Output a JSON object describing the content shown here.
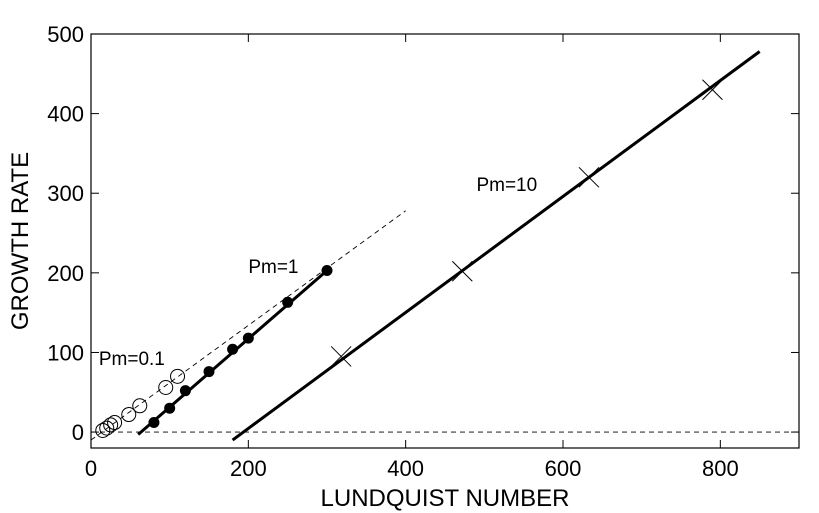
{
  "chart_data": {
    "type": "scatter",
    "title": "",
    "xlabel": "LUNDQUIST NUMBER",
    "ylabel": "GROWTH RATE",
    "xlim": [
      0,
      900
    ],
    "ylim": [
      -20,
      500
    ],
    "xticks": [
      "0",
      "200",
      "400",
      "600",
      "800"
    ],
    "yticks": [
      "0",
      "100",
      "200",
      "300",
      "400",
      "500"
    ],
    "grid": false,
    "legend": "none",
    "series": [
      {
        "marker": "open-circle",
        "x": [
          15,
          20,
          25,
          30,
          48,
          62,
          95,
          110
        ],
        "y": [
          2,
          5,
          9,
          12,
          22,
          33,
          56,
          70
        ]
      },
      {
        "marker": "filled-circle",
        "line": "solid",
        "x": [
          80,
          100,
          120,
          150,
          180,
          200,
          250,
          300
        ],
        "y": [
          12,
          30,
          52,
          76,
          104,
          118,
          163,
          203
        ],
        "fit": [
          [
            60,
            -3
          ],
          [
            300,
            203
          ]
        ]
      },
      {
        "marker": "cross",
        "line": "solid",
        "x": [
          318,
          472,
          633,
          790
        ],
        "y": [
          95,
          202,
          320,
          430
        ],
        "fit": [
          [
            180,
            -10
          ],
          [
            850,
            478
          ]
        ]
      }
    ],
    "reference_lines": [
      {
        "style": "dashed",
        "points": [
          [
            0,
            -10
          ],
          [
            400,
            278
          ]
        ]
      },
      {
        "style": "dashed",
        "points": [
          [
            0,
            0
          ],
          [
            900,
            0
          ]
        ]
      }
    ],
    "annotations": [
      {
        "text": "Pm=0.1",
        "x": 10,
        "y": 84
      },
      {
        "text": "Pm=1",
        "x": 200,
        "y": 200
      },
      {
        "text": "Pm=10",
        "x": 490,
        "y": 303
      }
    ]
  }
}
